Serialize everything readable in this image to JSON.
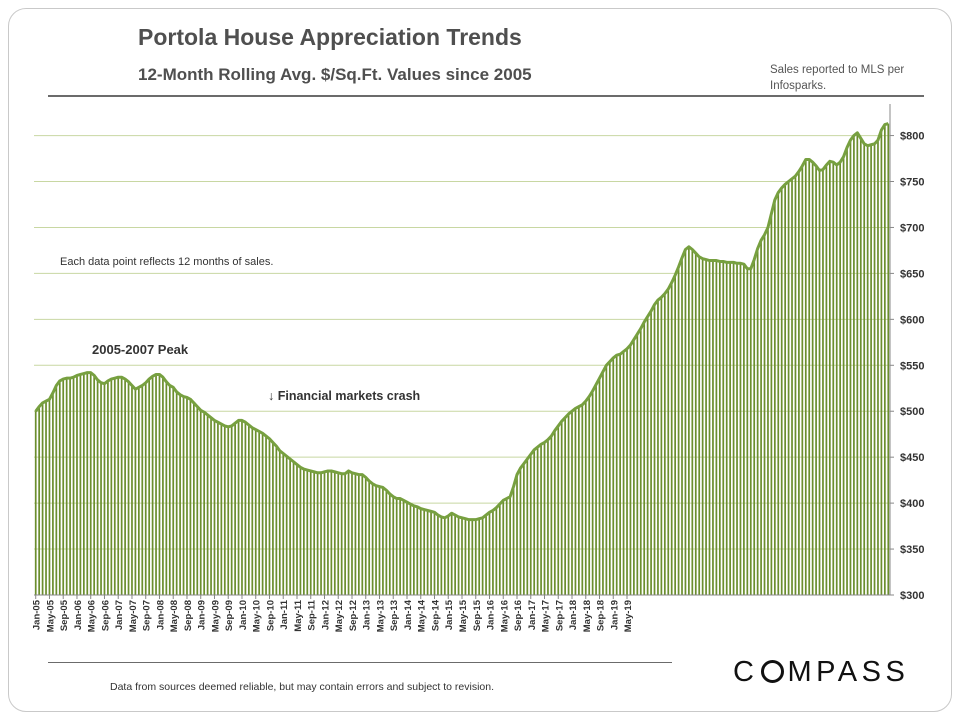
{
  "page": {
    "title": "Portola House Appreciation Trends",
    "subtitle": "12-Month Rolling Avg. $/Sq.Ft. Values since 2005",
    "source_note": "Sales reported to MLS per Infosparks.",
    "disclaimer": "Data from sources deemed reliable, but may contain errors and subject to revision.",
    "logo_text": "COMPASS"
  },
  "chart_data": {
    "type": "bar",
    "title": "Portola House Appreciation Trends",
    "subtitle": "12-Month Rolling Avg. $/Sq.Ft. Values since 2005",
    "ylim": [
      300,
      830
    ],
    "y_ticks": [
      300,
      350,
      400,
      450,
      500,
      550,
      600,
      650,
      700,
      750,
      800
    ],
    "y_tick_labels": [
      "$300",
      "$350",
      "$400",
      "$450",
      "$500",
      "$550",
      "$600",
      "$650",
      "$700",
      "$750",
      "$800"
    ],
    "y_axis_side": "right",
    "grid": true,
    "bar_color": "#6b8e2e",
    "line_color": "#77a040",
    "x_tick_labels": [
      "Jan-05",
      "May-05",
      "Sep-05",
      "Jan-06",
      "May-06",
      "Sep-06",
      "Jan-07",
      "May-07",
      "Sep-07",
      "Jan-08",
      "May-08",
      "Sep-08",
      "Jan-09",
      "May-09",
      "Sep-09",
      "Jan-10",
      "May-10",
      "Sep-10",
      "Jan-11",
      "May-11",
      "Sep-11",
      "Jan-12",
      "May-12",
      "Sep-12",
      "Jan-13",
      "May-13",
      "Sep-13",
      "Jan-14",
      "May-14",
      "Sep-14",
      "Jan-15",
      "May-15",
      "Sep-15",
      "Jan-16",
      "May-16",
      "Sep-16",
      "Jan-17",
      "May-17",
      "Sep-17",
      "Jan-18",
      "May-18",
      "Sep-18",
      "Jan-19",
      "May-19"
    ],
    "x_tick_step_months": 4,
    "start_month": "Jan-05",
    "end_month": "May-19",
    "series": [
      {
        "type": "bar+line",
        "values": [
          500,
          505,
          509,
          511,
          513,
          520,
          528,
          533,
          535,
          536,
          536,
          537,
          539,
          540,
          541,
          542,
          542,
          539,
          534,
          531,
          530,
          533,
          535,
          536,
          537,
          537,
          535,
          532,
          528,
          524,
          526,
          528,
          531,
          535,
          538,
          540,
          540,
          537,
          532,
          528,
          526,
          521,
          518,
          516,
          515,
          513,
          509,
          505,
          501,
          499,
          496,
          493,
          490,
          488,
          486,
          484,
          483,
          484,
          487,
          490,
          490,
          488,
          485,
          482,
          480,
          478,
          476,
          473,
          470,
          466,
          462,
          457,
          454,
          451,
          448,
          445,
          442,
          439,
          437,
          436,
          435,
          434,
          433,
          433,
          434,
          435,
          435,
          434,
          433,
          432,
          432,
          435,
          433,
          432,
          431,
          431,
          428,
          424,
          421,
          419,
          418,
          417,
          414,
          410,
          407,
          405,
          405,
          403,
          401,
          399,
          397,
          396,
          394,
          393,
          392,
          391,
          390,
          387,
          385,
          384,
          386,
          389,
          387,
          385,
          384,
          383,
          382,
          382,
          382,
          383,
          384,
          387,
          390,
          392,
          395,
          399,
          403,
          405,
          407,
          418,
          431,
          438,
          443,
          448,
          453,
          458,
          461,
          464,
          466,
          469,
          473,
          479,
          484,
          489,
          493,
          497,
          500,
          503,
          505,
          507,
          511,
          516,
          522,
          529,
          536,
          543,
          550,
          554,
          558,
          561,
          562,
          565,
          568,
          572,
          578,
          584,
          590,
          597,
          603,
          609,
          616,
          621,
          624,
          628,
          633,
          640,
          648,
          657,
          667,
          676,
          679,
          676,
          672,
          668,
          666,
          665,
          664,
          664,
          664,
          663,
          663,
          662,
          662,
          662,
          661,
          661,
          660,
          655,
          655,
          665,
          677,
          686,
          692,
          700,
          715,
          730,
          738,
          743,
          747,
          750,
          753,
          756,
          761,
          767,
          774,
          774,
          771,
          767,
          762,
          763,
          768,
          772,
          771,
          768,
          771,
          777,
          787,
          795,
          800,
          803,
          797,
          791,
          789,
          790,
          791,
          795,
          806,
          812,
          813
        ]
      }
    ],
    "annotations": [
      {
        "text": "Each data point reflects 12 months of sales."
      },
      {
        "text": "2005-2007 Peak"
      },
      {
        "text": "↓ Financial markets crash"
      }
    ]
  }
}
